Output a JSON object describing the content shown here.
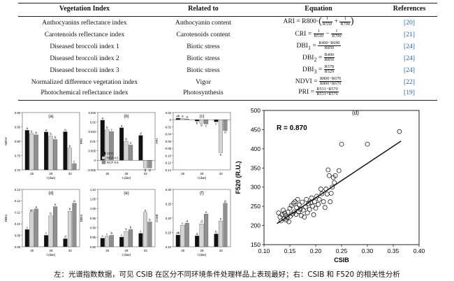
{
  "table": {
    "headers": [
      "Vegetation Index",
      "Related to",
      "Equation",
      "References"
    ],
    "rows": [
      {
        "name": "Anthocyanins reflectance index",
        "related": "Anthocyanin content",
        "eq": {
          "lhs": "ARI = R800·",
          "a_num": "1",
          "a_den": "R550",
          "b_num": "1",
          "b_den": "R700"
        },
        "ref": "[20]"
      },
      {
        "name": "Carotenoids reflectance index",
        "related": "Carotenoids content",
        "eq": {
          "lhs": "CRI = ",
          "a_num": "1",
          "a_den": "R510",
          "b_num": "1",
          "b_den": "R700"
        },
        "ref": "[21]"
      },
      {
        "name": "Diseased broccoli index 1",
        "related": "Biotic stress",
        "eq": {
          "lhs": "DBI",
          "sub": "1",
          "num": "R400−R690",
          "den": "R850"
        },
        "ref": "[24]"
      },
      {
        "name": "Diseased broccoli index 2",
        "related": "Biotic stress",
        "eq": {
          "lhs": "DBI",
          "sub": "2",
          "num": "R400",
          "den": "R850"
        },
        "ref": "[24]"
      },
      {
        "name": "Diseased broccoli index 3",
        "related": "Biotic stress",
        "eq": {
          "lhs": "DBI",
          "sub": "3",
          "num": "R578",
          "den": "R529"
        },
        "ref": "[24]"
      },
      {
        "name": "Normalized difference vegetation index",
        "related": "Vigor",
        "eq": {
          "lhs": "NDVI = ",
          "num": "R800−R670",
          "den": "R800+R670"
        },
        "ref": "[22]"
      },
      {
        "name": "Photochemical reflectance index",
        "related": "Photosynthesis",
        "eq": {
          "lhs": "PRI = ",
          "num": "R531−R570",
          "den": "R531+R570"
        },
        "ref": "[19]"
      }
    ]
  },
  "bar_panels": {
    "x_categories": [
      "25",
      "28",
      "32"
    ],
    "xlabel": "t (dae)",
    "legend": [
      "CCC",
      "RCP 4.5",
      "RCP 8.5"
    ],
    "colors": [
      "#111111",
      "#d4d4d4",
      "#8f8f8f"
    ],
    "panels": [
      {
        "letter": "(a)",
        "ylabel": "NDVI",
        "ylim": [
          0.7,
          0.9
        ],
        "ticks": [
          "0.90",
          "0.85",
          "0.80",
          "0.75",
          "0.70"
        ],
        "values": [
          [
            0.838,
            0.826,
            0.822
          ],
          [
            0.832,
            0.818,
            0.806
          ],
          [
            0.833,
            0.776,
            0.722
          ]
        ],
        "labels": [
          [
            "a",
            "b",
            "b"
          ],
          [
            "a",
            "b",
            "b"
          ],
          [
            "a",
            "b",
            "c"
          ]
        ]
      },
      {
        "letter": "(b)",
        "ylabel": "PRI",
        "ylim": [
          -0.005,
          0.025
        ],
        "ticks": [
          "0.025",
          "0.02",
          "0.015",
          "0.01",
          "0.005",
          "0",
          "-0.005"
        ],
        "values": [
          [
            0.021,
            0.016,
            0.015
          ],
          [
            0.017,
            0.01,
            0.008
          ],
          [
            0.013,
            -0.004,
            -0.004
          ]
        ],
        "labels": [
          [
            "a",
            "b",
            "c"
          ],
          [
            "a",
            "b",
            "e"
          ],
          [
            "d",
            "g",
            "g"
          ]
        ]
      },
      {
        "letter": "(c)",
        "ylabel": "ARI",
        "ylim": [
          -0.14,
          0.02
        ],
        "ticks": [
          "0.02",
          "0",
          "-0.02",
          "-0.04",
          "-0.06",
          "-0.08",
          "-0.10",
          "-0.12",
          "-0.14"
        ],
        "values": [
          [
            0.004,
            0.004,
            0.002
          ],
          [
            -0.004,
            -0.01,
            -0.012
          ],
          [
            -0.006,
            -0.092,
            -0.03
          ]
        ],
        "labels": [
          [
            "ab",
            "a",
            "a"
          ],
          [
            "b",
            "b",
            "c"
          ],
          [
            "c",
            "e",
            "d"
          ]
        ]
      },
      {
        "letter": "(d)",
        "ylabel": "DBI1",
        "ylim": [
          0.08,
          0.13
        ],
        "ticks": [
          "0.13",
          "0.12",
          "0.11",
          "0.10",
          "0.09",
          "0.08"
        ],
        "values": [
          [
            0.095,
            0.11,
            0.113
          ],
          [
            0.09,
            0.107,
            0.115
          ],
          [
            0.087,
            0.111,
            0.118
          ]
        ],
        "labels": [
          [
            "c",
            "ab",
            "a"
          ],
          [
            "c",
            "b",
            "a"
          ],
          [
            "d",
            "b",
            "a"
          ]
        ]
      },
      {
        "letter": "(e)",
        "ylabel": "DBI2",
        "ylim": [
          0.8,
          1.1
        ],
        "ticks": [
          "1.10",
          "1.05",
          "1.00",
          "0.95",
          "0.90",
          "0.85",
          "0.80"
        ],
        "values": [
          [
            0.845,
            0.855,
            0.86
          ],
          [
            0.85,
            0.88,
            0.89
          ],
          [
            0.87,
            0.98,
            0.93
          ]
        ],
        "labels": [
          [
            "c",
            "c",
            "b"
          ],
          [
            "c",
            "b",
            "b"
          ],
          [
            "c",
            "a",
            "b"
          ]
        ]
      },
      {
        "letter": "(f)",
        "ylabel": "CSIB",
        "ylim": [
          0.1,
          0.3
        ],
        "ticks": [
          "0.30",
          "0.25",
          "0.20",
          "0.15",
          "0.10"
        ],
        "values": [
          [
            0.141,
            0.175,
            0.182
          ],
          [
            0.138,
            0.18,
            0.214
          ],
          [
            0.145,
            0.19,
            0.252
          ]
        ],
        "labels": [
          [
            "ab",
            "c",
            "d"
          ],
          [
            "a",
            "d",
            "e"
          ],
          [
            "b",
            "e",
            "g"
          ]
        ]
      }
    ]
  },
  "chart_data": {
    "type": "scatter",
    "title": "(d)",
    "xlabel": "CSIB",
    "ylabel": "F520 (R.U.)",
    "xlim": [
      0.1,
      0.4
    ],
    "ylim": [
      150,
      500
    ],
    "xticks": [
      "0.10",
      "0.15",
      "0.20",
      "0.25",
      "0.30",
      "0.35",
      "0.40"
    ],
    "yticks": [
      "500",
      "450",
      "400",
      "350",
      "300",
      "250",
      "200",
      "150"
    ],
    "annotation": "R = 0.870",
    "trendline": {
      "x": [
        0.125,
        0.365
      ],
      "y": [
        205,
        420
      ]
    },
    "points": [
      [
        0.128,
        233
      ],
      [
        0.131,
        222
      ],
      [
        0.133,
        212
      ],
      [
        0.135,
        228
      ],
      [
        0.137,
        240
      ],
      [
        0.139,
        218
      ],
      [
        0.14,
        232
      ],
      [
        0.142,
        226
      ],
      [
        0.143,
        214
      ],
      [
        0.145,
        221
      ],
      [
        0.146,
        235
      ],
      [
        0.148,
        210
      ],
      [
        0.15,
        245
      ],
      [
        0.151,
        224
      ],
      [
        0.153,
        252
      ],
      [
        0.155,
        230
      ],
      [
        0.157,
        258
      ],
      [
        0.158,
        235
      ],
      [
        0.16,
        262
      ],
      [
        0.162,
        229
      ],
      [
        0.163,
        247
      ],
      [
        0.165,
        268
      ],
      [
        0.167,
        236
      ],
      [
        0.168,
        254
      ],
      [
        0.17,
        242
      ],
      [
        0.172,
        226
      ],
      [
        0.174,
        261
      ],
      [
        0.176,
        240
      ],
      [
        0.178,
        222
      ],
      [
        0.18,
        248
      ],
      [
        0.182,
        268
      ],
      [
        0.184,
        233
      ],
      [
        0.186,
        257
      ],
      [
        0.188,
        242
      ],
      [
        0.19,
        260
      ],
      [
        0.192,
        272
      ],
      [
        0.194,
        250
      ],
      [
        0.196,
        228
      ],
      [
        0.198,
        262
      ],
      [
        0.2,
        245
      ],
      [
        0.202,
        276
      ],
      [
        0.205,
        255
      ],
      [
        0.207,
        268
      ],
      [
        0.21,
        295
      ],
      [
        0.212,
        283
      ],
      [
        0.215,
        262
      ],
      [
        0.218,
        247
      ],
      [
        0.22,
        295
      ],
      [
        0.222,
        282
      ],
      [
        0.224,
        345
      ],
      [
        0.226,
        330
      ],
      [
        0.228,
        262
      ],
      [
        0.23,
        284
      ],
      [
        0.232,
        300
      ],
      [
        0.234,
        325
      ],
      [
        0.236,
        312
      ],
      [
        0.238,
        330
      ],
      [
        0.245,
        343
      ],
      [
        0.25,
        412
      ],
      [
        0.3,
        412
      ],
      [
        0.362,
        445
      ]
    ]
  },
  "caption": "左：光谱指数数据，可见 CSIB 在区分不同环境条件处理样品上表现最好；右：CSIB 和 F520 的相关性分析"
}
